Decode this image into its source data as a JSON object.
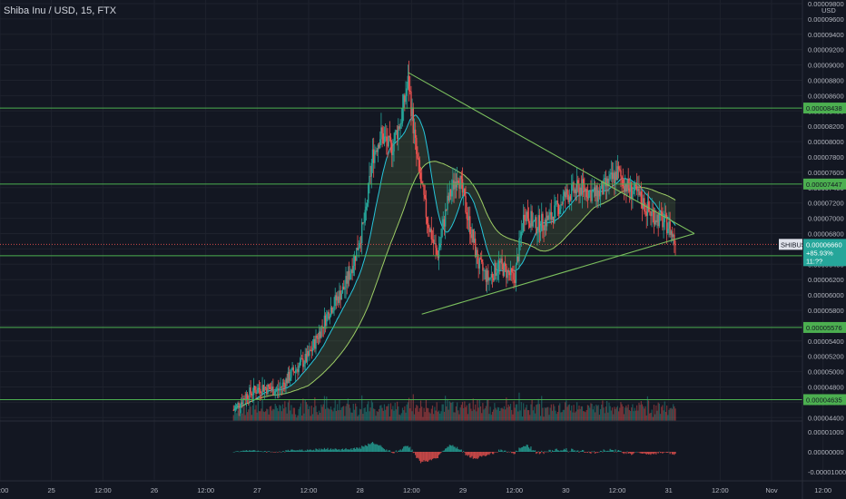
{
  "header": {
    "title": "Shiba Inu / USD, 15, FTX"
  },
  "price_axis": {
    "currency": "USD",
    "ticks": [
      "0.00009800",
      "0.00009600",
      "0.00009400",
      "0.00009200",
      "0.00009000",
      "0.00008800",
      "0.00008600",
      "0.00008400",
      "0.00008200",
      "0.00008000",
      "0.00007800",
      "0.00007600",
      "0.00007400",
      "0.00007200",
      "0.00007000",
      "0.00006800",
      "0.00006600",
      "0.00006400",
      "0.00006200",
      "0.00006000",
      "0.00005800",
      "0.00005600",
      "0.00005400",
      "0.00005200",
      "0.00005000",
      "0.00004800",
      "0.00004600",
      "0.00004400"
    ]
  },
  "osc_axis": {
    "ticks": [
      "0.00001000",
      "0.00000000",
      "-0.00001000"
    ]
  },
  "time_axis": {
    "ticks": [
      "12:00",
      "25",
      "12:00",
      "26",
      "12:00",
      "27",
      "12:00",
      "28",
      "12:00",
      "29",
      "12:00",
      "30",
      "12:00",
      "31",
      "12:00",
      "Nov",
      "12:00"
    ]
  },
  "colors": {
    "background": "#131722",
    "grid": "#1e222d",
    "up": "#26a69a",
    "down": "#ef5350",
    "level": "#4caf50",
    "triangle": "#7bbf5e",
    "cloud": "#9ccc65",
    "ma": "#26c6da"
  },
  "last_price": {
    "symbol": "SHIBUSD",
    "price": "0.00006660",
    "change": "+85.93%",
    "countdown": "11:??"
  },
  "chart_data": {
    "type": "candlestick",
    "title": "Shiba Inu / USD, 15, FTX",
    "x_unit": "days (Oct)",
    "xlim": [
      24.0,
      31.8
    ],
    "ylim": [
      4.38e-05,
      9.8e-05
    ],
    "horizontal_levels": [
      {
        "label": "0.00008438",
        "value": 8.438e-05
      },
      {
        "label": "0.00007447",
        "value": 7.447e-05
      },
      {
        "label": "0.00006511",
        "value": 6.511e-05
      },
      {
        "label": "0.00005576",
        "value": 5.576e-05
      },
      {
        "label": "0.00004635",
        "value": 4.635e-05
      }
    ],
    "triangle": {
      "upper": [
        [
          27.97,
          8.9e-05
        ],
        [
          30.75,
          6.8e-05
        ]
      ],
      "lower": [
        [
          28.1,
          5.75e-05
        ],
        [
          30.75,
          6.8e-05
        ]
      ]
    },
    "close_path": [
      [
        26.27,
        4.5e-05
      ],
      [
        26.4,
        4.7e-05
      ],
      [
        26.55,
        4.8e-05
      ],
      [
        26.7,
        4.75e-05
      ],
      [
        26.85,
        5e-05
      ],
      [
        27.0,
        5.2e-05
      ],
      [
        27.1,
        5.5e-05
      ],
      [
        27.2,
        5.8e-05
      ],
      [
        27.35,
        6.1e-05
      ],
      [
        27.45,
        6.5e-05
      ],
      [
        27.55,
        7e-05
      ],
      [
        27.62,
        7.8e-05
      ],
      [
        27.7,
        8.1e-05
      ],
      [
        27.8,
        7.9e-05
      ],
      [
        27.9,
        8.3e-05
      ],
      [
        27.97,
        8.8e-05
      ],
      [
        28.05,
        7.8e-05
      ],
      [
        28.15,
        7e-05
      ],
      [
        28.25,
        6.5e-05
      ],
      [
        28.35,
        7.2e-05
      ],
      [
        28.45,
        7.6e-05
      ],
      [
        28.55,
        7e-05
      ],
      [
        28.65,
        6.4e-05
      ],
      [
        28.75,
        6.2e-05
      ],
      [
        28.85,
        6.4e-05
      ],
      [
        29.0,
        6.2e-05
      ],
      [
        29.1,
        7.1e-05
      ],
      [
        29.2,
        6.9e-05
      ],
      [
        29.35,
        7e-05
      ],
      [
        29.5,
        7.3e-05
      ],
      [
        29.65,
        7.4e-05
      ],
      [
        29.8,
        7.3e-05
      ],
      [
        29.95,
        7.5e-05
      ],
      [
        30.0,
        7.6e-05
      ],
      [
        30.1,
        7.4e-05
      ],
      [
        30.2,
        7.3e-05
      ],
      [
        30.3,
        7.1e-05
      ],
      [
        30.4,
        7e-05
      ],
      [
        30.5,
        6.9e-05
      ],
      [
        30.57,
        6.66e-05
      ]
    ]
  }
}
